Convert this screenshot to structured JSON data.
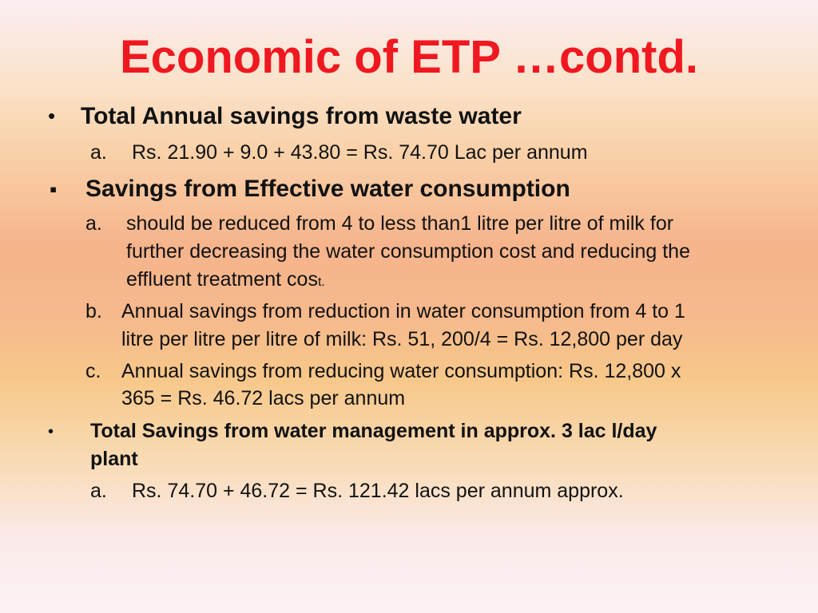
{
  "slide": {
    "title": "Economic of ETP …contd.",
    "section1": {
      "bullet": "•",
      "heading": "Total Annual savings from waste water",
      "item_a_label": "a.",
      "item_a": "Rs. 21.90 + 9.0 + 43.80 = Rs. 74.70 Lac per annum"
    },
    "section2": {
      "bullet": "▪",
      "heading": "Savings from Effective water consumption",
      "item_a_label": "a.",
      "item_a_lines": [
        "should be reduced from 4 to  less than1 litre per litre of milk for",
        "further decreasing the water consumption cost and reducing the",
        "effluent treatment cos"
      ],
      "item_a_tail": "t.",
      "item_b_label": "b.",
      "item_b_lines": [
        "Annual savings from reduction in water consumption from 4 to 1",
        "litre per litre per litre of milk: Rs. 51, 200/4 = Rs. 12,800 per day"
      ],
      "item_c_label": "c.",
      "item_c_lines": [
        "Annual savings from reducing water consumption: Rs. 12,800 x",
        "365 = Rs. 46.72 lacs per annum"
      ]
    },
    "section3": {
      "bullet": "•",
      "heading_lines": [
        "Total Savings from water management in approx. 3 lac l/day",
        "plant"
      ],
      "item_a_label": "a.",
      "item_a": "Rs. 74.70 + 46.72 = Rs. 121.42 lacs per annum approx."
    }
  }
}
